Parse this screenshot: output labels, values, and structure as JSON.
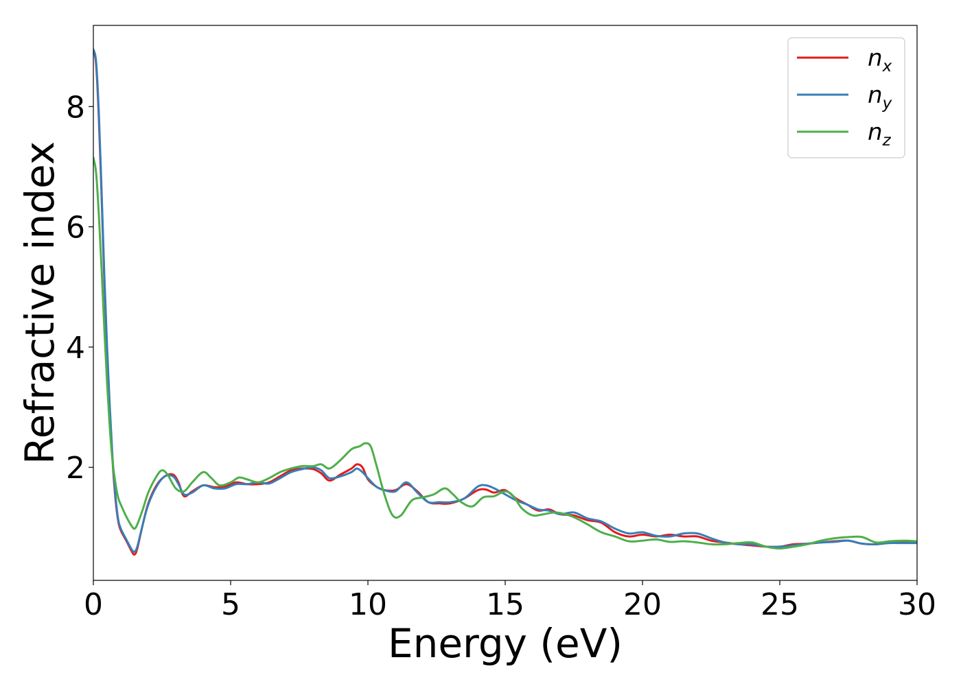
{
  "chart_data": {
    "type": "line",
    "xlabel": "Energy (eV)",
    "ylabel": "Refractive index",
    "xlim": [
      0,
      30
    ],
    "ylim": [
      0.12,
      9.35
    ],
    "xticks": [
      0,
      5,
      10,
      15,
      20,
      25,
      30
    ],
    "yticks": [
      2,
      4,
      6,
      8
    ],
    "grid": false,
    "legend_position": "top-right",
    "series": [
      {
        "name": "n_x",
        "label_main": "n",
        "label_sub": "x",
        "color": "#e41a1c",
        "x": [
          0,
          0.1,
          0.2,
          0.3,
          0.4,
          0.5,
          0.6,
          0.7,
          0.8,
          0.9,
          1.0,
          1.2,
          1.4,
          1.5,
          1.6,
          1.8,
          2.0,
          2.3,
          2.6,
          2.9,
          3.1,
          3.3,
          3.6,
          4.0,
          4.4,
          4.8,
          5.2,
          5.6,
          6.0,
          6.4,
          6.8,
          7.2,
          7.6,
          8.0,
          8.3,
          8.6,
          9.0,
          9.4,
          9.6,
          9.8,
          10.0,
          10.3,
          10.6,
          11.0,
          11.4,
          11.8,
          12.2,
          12.6,
          13.0,
          13.5,
          14.0,
          14.3,
          14.6,
          15.0,
          15.4,
          15.8,
          16.2,
          16.6,
          17.0,
          17.5,
          18.0,
          18.5,
          19.0,
          19.5,
          20.0,
          20.5,
          21.0,
          21.5,
          22.0,
          22.5,
          23.0,
          23.5,
          24.0,
          24.5,
          25.0,
          25.5,
          26.0,
          26.5,
          27.0,
          27.5,
          28.0,
          28.5,
          29.0,
          29.5,
          30.0
        ],
        "y": [
          8.95,
          8.7,
          7.8,
          6.5,
          5.1,
          3.9,
          2.9,
          2.1,
          1.5,
          1.12,
          0.95,
          0.78,
          0.6,
          0.55,
          0.65,
          1.05,
          1.4,
          1.7,
          1.85,
          1.88,
          1.75,
          1.52,
          1.6,
          1.7,
          1.67,
          1.68,
          1.75,
          1.72,
          1.72,
          1.75,
          1.85,
          1.95,
          1.98,
          1.97,
          1.9,
          1.78,
          1.88,
          1.98,
          2.05,
          2.0,
          1.8,
          1.68,
          1.62,
          1.62,
          1.72,
          1.6,
          1.42,
          1.4,
          1.4,
          1.48,
          1.62,
          1.63,
          1.58,
          1.62,
          1.48,
          1.38,
          1.28,
          1.3,
          1.22,
          1.2,
          1.12,
          1.08,
          0.92,
          0.85,
          0.88,
          0.85,
          0.88,
          0.85,
          0.85,
          0.78,
          0.75,
          0.72,
          0.7,
          0.68,
          0.68,
          0.72,
          0.73,
          0.75,
          0.77,
          0.78,
          0.73,
          0.72,
          0.75,
          0.75,
          0.75
        ]
      },
      {
        "name": "n_y",
        "label_main": "n",
        "label_sub": "y",
        "color": "#377eb8",
        "x": [
          0,
          0.1,
          0.2,
          0.3,
          0.4,
          0.5,
          0.6,
          0.7,
          0.8,
          0.9,
          1.0,
          1.2,
          1.4,
          1.5,
          1.6,
          1.8,
          2.0,
          2.3,
          2.6,
          2.9,
          3.1,
          3.3,
          3.6,
          4.0,
          4.4,
          4.8,
          5.2,
          5.6,
          6.0,
          6.4,
          6.8,
          7.2,
          7.6,
          8.0,
          8.3,
          8.6,
          9.0,
          9.4,
          9.6,
          9.8,
          10.0,
          10.3,
          10.6,
          11.0,
          11.4,
          11.8,
          12.2,
          12.6,
          13.0,
          13.5,
          14.0,
          14.3,
          14.6,
          15.0,
          15.4,
          15.8,
          16.2,
          16.6,
          17.0,
          17.5,
          18.0,
          18.5,
          19.0,
          19.5,
          20.0,
          20.5,
          21.0,
          21.5,
          22.0,
          22.5,
          23.0,
          23.5,
          24.0,
          24.5,
          25.0,
          25.5,
          26.0,
          26.5,
          27.0,
          27.5,
          28.0,
          28.5,
          29.0,
          29.5,
          30.0
        ],
        "y": [
          8.95,
          8.75,
          7.9,
          6.6,
          5.2,
          4.0,
          3.0,
          2.15,
          1.55,
          1.15,
          0.98,
          0.8,
          0.63,
          0.6,
          0.68,
          1.05,
          1.38,
          1.68,
          1.85,
          1.85,
          1.72,
          1.55,
          1.58,
          1.7,
          1.65,
          1.65,
          1.72,
          1.72,
          1.75,
          1.73,
          1.82,
          1.92,
          1.97,
          2.0,
          1.95,
          1.82,
          1.85,
          1.92,
          1.98,
          1.92,
          1.82,
          1.68,
          1.62,
          1.6,
          1.75,
          1.58,
          1.42,
          1.42,
          1.42,
          1.48,
          1.68,
          1.7,
          1.65,
          1.55,
          1.45,
          1.38,
          1.3,
          1.28,
          1.22,
          1.25,
          1.15,
          1.1,
          0.98,
          0.9,
          0.92,
          0.86,
          0.85,
          0.9,
          0.9,
          0.82,
          0.75,
          0.72,
          0.72,
          0.68,
          0.68,
          0.7,
          0.73,
          0.75,
          0.76,
          0.78,
          0.73,
          0.72,
          0.74,
          0.74,
          0.74
        ]
      },
      {
        "name": "n_z",
        "label_main": "n",
        "label_sub": "z",
        "color": "#4daf4a",
        "x": [
          0,
          0.1,
          0.2,
          0.3,
          0.4,
          0.5,
          0.6,
          0.7,
          0.8,
          0.9,
          1.0,
          1.2,
          1.4,
          1.5,
          1.6,
          1.8,
          2.0,
          2.3,
          2.5,
          2.7,
          3.0,
          3.3,
          3.6,
          4.0,
          4.3,
          4.6,
          5.0,
          5.3,
          5.6,
          6.0,
          6.4,
          6.8,
          7.2,
          7.6,
          8.0,
          8.3,
          8.6,
          9.0,
          9.4,
          9.7,
          9.9,
          10.1,
          10.3,
          10.6,
          10.9,
          11.2,
          11.6,
          12.0,
          12.4,
          12.8,
          13.1,
          13.4,
          13.8,
          14.2,
          14.6,
          15.0,
          15.3,
          15.6,
          16.0,
          16.4,
          16.8,
          17.2,
          17.6,
          18.0,
          18.5,
          19.0,
          19.5,
          20.0,
          20.5,
          21.0,
          21.5,
          22.0,
          22.5,
          23.0,
          23.5,
          24.0,
          24.5,
          25.0,
          25.5,
          26.0,
          26.5,
          27.0,
          27.5,
          28.0,
          28.5,
          29.0,
          29.5,
          30.0
        ],
        "y": [
          7.15,
          6.9,
          6.2,
          5.3,
          4.3,
          3.4,
          2.65,
          2.1,
          1.75,
          1.5,
          1.38,
          1.18,
          1.02,
          0.98,
          1.05,
          1.3,
          1.58,
          1.85,
          1.95,
          1.88,
          1.65,
          1.6,
          1.75,
          1.92,
          1.82,
          1.7,
          1.75,
          1.83,
          1.8,
          1.75,
          1.82,
          1.92,
          1.98,
          2.02,
          2.02,
          2.05,
          1.98,
          2.12,
          2.3,
          2.35,
          2.4,
          2.35,
          2.05,
          1.55,
          1.2,
          1.2,
          1.45,
          1.5,
          1.55,
          1.65,
          1.55,
          1.42,
          1.35,
          1.5,
          1.52,
          1.6,
          1.52,
          1.32,
          1.2,
          1.22,
          1.25,
          1.22,
          1.15,
          1.05,
          0.92,
          0.85,
          0.77,
          0.78,
          0.8,
          0.76,
          0.77,
          0.75,
          0.72,
          0.72,
          0.74,
          0.75,
          0.68,
          0.65,
          0.68,
          0.72,
          0.78,
          0.82,
          0.84,
          0.84,
          0.75,
          0.77,
          0.78,
          0.77
        ]
      }
    ]
  }
}
